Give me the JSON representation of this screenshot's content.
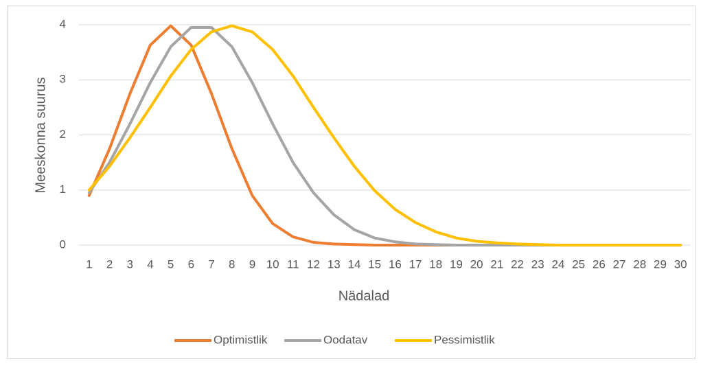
{
  "chart_data": {
    "type": "line",
    "x_label": "Nädalad",
    "y_label": "Meeskonna suurus",
    "categories": [
      "1",
      "2",
      "3",
      "4",
      "5",
      "6",
      "7",
      "8",
      "9",
      "10",
      "11",
      "12",
      "13",
      "14",
      "15",
      "16",
      "17",
      "18",
      "19",
      "20",
      "21",
      "22",
      "23",
      "24",
      "25",
      "26",
      "27",
      "28",
      "29",
      "30"
    ],
    "series": [
      {
        "name": "Optimistlik",
        "color": "#ed7d31",
        "values": [
          0.9,
          1.75,
          2.75,
          3.63,
          3.98,
          3.63,
          2.75,
          1.75,
          0.9,
          0.39,
          0.15,
          0.05,
          0.02,
          0.01,
          0,
          0,
          0,
          0,
          0,
          0,
          0,
          0,
          0,
          0,
          0,
          0,
          0,
          0,
          0,
          0
        ]
      },
      {
        "name": "Oodatav",
        "color": "#a5a5a5",
        "values": [
          0.95,
          1.5,
          2.2,
          2.95,
          3.6,
          3.95,
          3.95,
          3.6,
          2.95,
          2.2,
          1.5,
          0.95,
          0.55,
          0.28,
          0.13,
          0.06,
          0.02,
          0.01,
          0,
          0,
          0,
          0,
          0,
          0,
          0,
          0,
          0,
          0,
          0,
          0
        ]
      },
      {
        "name": "Pessimistlik",
        "color": "#ffc000",
        "values": [
          1.0,
          1.43,
          1.95,
          2.5,
          3.07,
          3.55,
          3.87,
          3.98,
          3.87,
          3.55,
          3.07,
          2.5,
          1.95,
          1.43,
          0.99,
          0.65,
          0.41,
          0.24,
          0.13,
          0.07,
          0.04,
          0.02,
          0.01,
          0,
          0,
          0,
          0,
          0,
          0,
          0
        ]
      }
    ],
    "ylim": [
      0,
      4
    ],
    "yticks": [
      0,
      1,
      2,
      3,
      4
    ],
    "grid": true,
    "legend": "bottom"
  }
}
